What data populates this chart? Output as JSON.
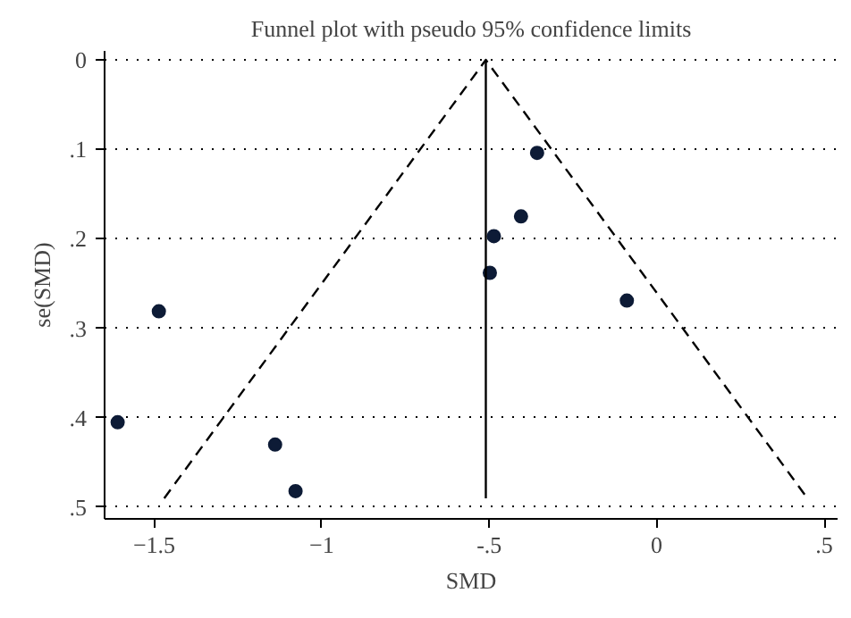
{
  "chart_data": {
    "type": "scatter",
    "title": "Funnel plot with pseudo 95% confidence limits",
    "xlabel": "SMD",
    "ylabel": "se(SMD)",
    "series": [
      {
        "marker": "circle",
        "color": "#0d1b36",
        "x": [
          -0.357,
          -0.405,
          -0.486,
          -0.498,
          -0.089,
          -1.486,
          -1.609,
          -1.139,
          -1.078
        ],
        "values": [
          0.104,
          0.175,
          0.197,
          0.238,
          0.269,
          0.281,
          0.405,
          0.43,
          0.482
        ]
      },
      {
        "type": "line",
        "color": "#000000",
        "line_style": "dashed",
        "x": [
          -1.47,
          -0.51,
          0.45
        ],
        "values": [
          0.49,
          0,
          0.49
        ]
      },
      {
        "type": "line",
        "color": "#000000",
        "line_style": "solid",
        "x": [
          -0.51,
          -0.51
        ],
        "values": [
          0,
          0.49
        ]
      }
    ],
    "xlim": [
      -1.648,
      0.54
    ],
    "ylim": [
      0.513,
      -0.01
    ],
    "xticks": [
      -1.5,
      -1,
      {
        "value": -0.5,
        "label": "-.5"
      },
      0,
      {
        "value": 0.5,
        "label": ".5"
      }
    ],
    "yticks": [
      0,
      {
        "value": 0.1,
        "label": ".1"
      },
      {
        "value": 0.2,
        "label": ".2"
      },
      {
        "value": 0.3,
        "label": ".3"
      },
      {
        "value": 0.4,
        "label": ".4"
      },
      {
        "value": 0.5,
        "label": ".5"
      }
    ],
    "grid": "y"
  }
}
